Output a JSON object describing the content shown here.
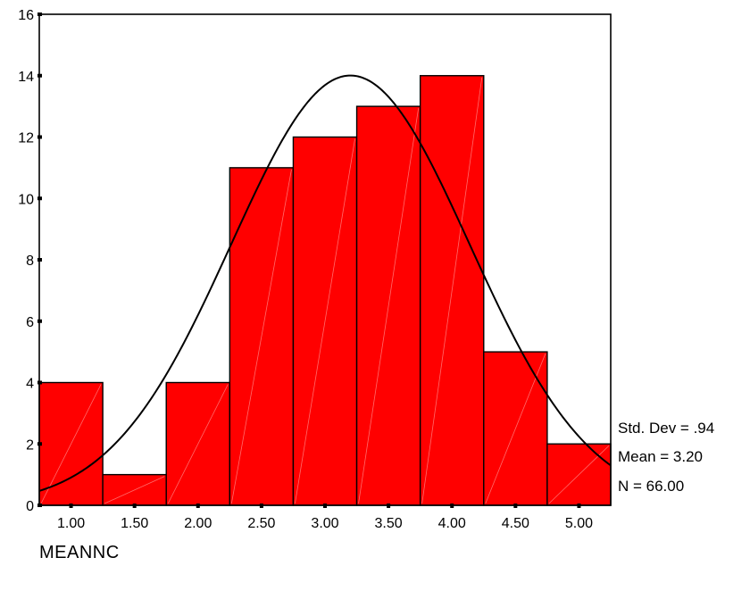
{
  "chart_data": {
    "type": "bar",
    "title": "",
    "xlabel": "MEANNC",
    "ylabel": "",
    "bin_width": 0.5,
    "categories": [
      "1.00",
      "1.50",
      "2.00",
      "2.50",
      "3.00",
      "3.50",
      "4.00",
      "4.50",
      "5.00"
    ],
    "x": [
      1.0,
      1.5,
      2.0,
      2.5,
      3.0,
      3.5,
      4.0,
      4.5,
      5.0
    ],
    "values": [
      4,
      1,
      4,
      11,
      12,
      13,
      14,
      5,
      2
    ],
    "ylim": [
      0,
      16
    ],
    "xlim": [
      0.75,
      5.25
    ],
    "y_ticks": [
      0,
      2,
      4,
      6,
      8,
      10,
      12,
      14,
      16
    ],
    "grid": false,
    "normal_curve": {
      "mean": 3.2,
      "std_dev": 0.94,
      "n": 66
    },
    "stats": {
      "std_dev_text": "Std. Dev = .94",
      "mean_text": "Mean = 3.20",
      "n_text": "N = 66.00"
    },
    "colors": {
      "bar_fill": "#ff0000",
      "bar_stroke": "#000000",
      "curve": "#000000",
      "axis": "#000000"
    }
  }
}
